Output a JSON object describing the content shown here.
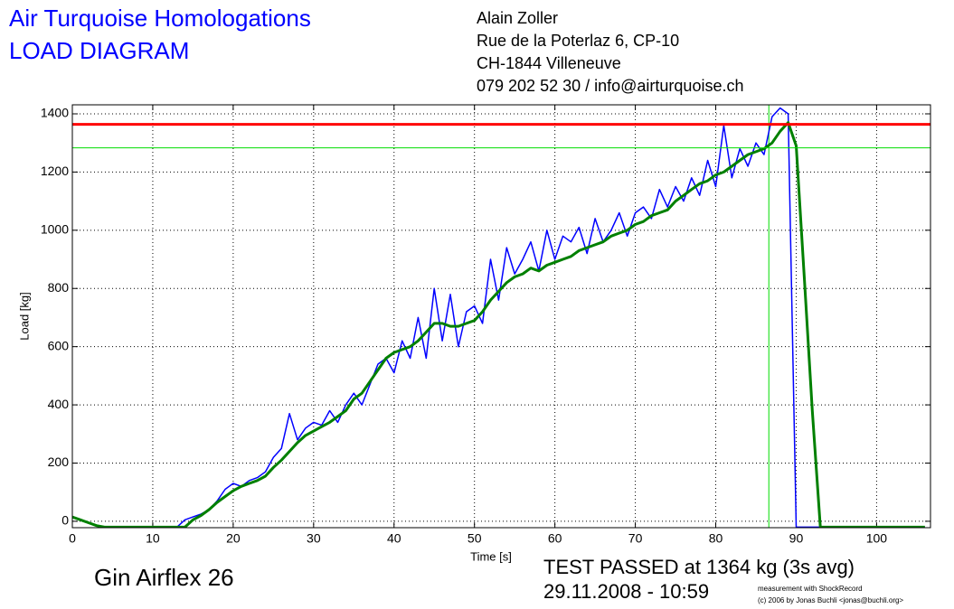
{
  "header": {
    "title": "Air Turquoise Homologations",
    "subtitle": "LOAD DIAGRAM",
    "address": [
      "Alain Zoller",
      "Rue de la Poterlaz 6, CP-10",
      "CH-1844 Villeneuve",
      "079 202 52 30 / info@airturquoise.ch"
    ]
  },
  "footer": {
    "glider": "Gin Airflex 26",
    "result": "TEST PASSED at 1364 kg (3s avg)",
    "date": "29.11.2008 - 10:59",
    "credit": "measurement with ShockRecord",
    "copyright": "(c) 2006 by Jonas Buchli <jonas@buchli.org>"
  },
  "chart_data": {
    "type": "line",
    "x_label": "Time [s]",
    "y_label": "Load [kg]",
    "xlim": [
      0,
      106.7
    ],
    "ylim": [
      -22,
      1431
    ],
    "xticks": [
      0,
      10,
      20,
      30,
      40,
      50,
      60,
      70,
      80,
      90,
      100
    ],
    "yticks": [
      0,
      200,
      400,
      600,
      800,
      1000,
      1200,
      1400
    ],
    "grid": true,
    "x": [
      0,
      1,
      2,
      3,
      4,
      5,
      6,
      7,
      8,
      9,
      10,
      11,
      12,
      13,
      14,
      15,
      16,
      17,
      18,
      19,
      20,
      21,
      22,
      23,
      24,
      25,
      26,
      27,
      28,
      29,
      30,
      31,
      32,
      33,
      34,
      35,
      36,
      37,
      38,
      39,
      40,
      41,
      42,
      43,
      44,
      45,
      46,
      47,
      48,
      49,
      50,
      51,
      52,
      53,
      54,
      55,
      56,
      57,
      58,
      59,
      60,
      61,
      62,
      63,
      64,
      65,
      66,
      67,
      68,
      69,
      70,
      71,
      72,
      73,
      74,
      75,
      76,
      77,
      78,
      79,
      80,
      81,
      82,
      83,
      84,
      85,
      86,
      87,
      88,
      89,
      90,
      91,
      92,
      93,
      94,
      95,
      96,
      97,
      98,
      99,
      100,
      101,
      102,
      103,
      104,
      105,
      106
    ],
    "series": [
      {
        "color": "#0000ff",
        "width": 1.5,
        "values": [
          15,
          5,
          -5,
          -15,
          -20,
          -20,
          -20,
          -20,
          -20,
          -20,
          -20,
          -20,
          -20,
          -20,
          5,
          15,
          25,
          40,
          70,
          110,
          130,
          120,
          140,
          150,
          170,
          220,
          250,
          370,
          280,
          320,
          340,
          330,
          380,
          340,
          400,
          440,
          400,
          470,
          540,
          560,
          510,
          620,
          560,
          700,
          560,
          800,
          620,
          780,
          600,
          720,
          740,
          680,
          900,
          760,
          940,
          850,
          900,
          960,
          860,
          1000,
          900,
          980,
          960,
          1010,
          920,
          1040,
          960,
          1000,
          1060,
          980,
          1060,
          1080,
          1040,
          1140,
          1080,
          1150,
          1100,
          1180,
          1120,
          1240,
          1150,
          1360,
          1180,
          1280,
          1220,
          1300,
          1260,
          1390,
          1420,
          1400,
          -20,
          -20,
          -20,
          -20,
          -20,
          -20,
          -20,
          -20,
          -20,
          -20,
          -20,
          -20,
          -20,
          -20,
          -20,
          -20,
          -20
        ]
      },
      {
        "color": "#008000",
        "width": 3,
        "values": [
          15,
          5,
          -5,
          -15,
          -20,
          -20,
          -20,
          -20,
          -20,
          -20,
          -20,
          -20,
          -20,
          -20,
          -20,
          5,
          20,
          40,
          65,
          85,
          105,
          120,
          130,
          140,
          155,
          185,
          210,
          240,
          270,
          295,
          310,
          325,
          340,
          360,
          380,
          420,
          440,
          480,
          520,
          560,
          580,
          590,
          600,
          620,
          650,
          680,
          680,
          670,
          670,
          680,
          690,
          720,
          760,
          790,
          820,
          840,
          850,
          870,
          860,
          880,
          890,
          900,
          910,
          930,
          940,
          950,
          960,
          980,
          990,
          1000,
          1020,
          1030,
          1050,
          1060,
          1070,
          1100,
          1120,
          1140,
          1160,
          1170,
          1190,
          1200,
          1220,
          1240,
          1260,
          1270,
          1280,
          1300,
          1340,
          1370,
          1290,
          840,
          380,
          -20,
          -20,
          -20,
          -20,
          -20,
          -20,
          -20,
          -20,
          -20,
          -20,
          -20,
          -20,
          -20,
          -20
        ]
      }
    ],
    "hlines": [
      {
        "value": 1364,
        "color": "#ff0000",
        "width": 3
      },
      {
        "value": 1283,
        "color": "#00dd00",
        "width": 1
      }
    ],
    "vlines": [
      {
        "value": 86.6,
        "color": "#00dd00",
        "width": 1
      }
    ]
  }
}
